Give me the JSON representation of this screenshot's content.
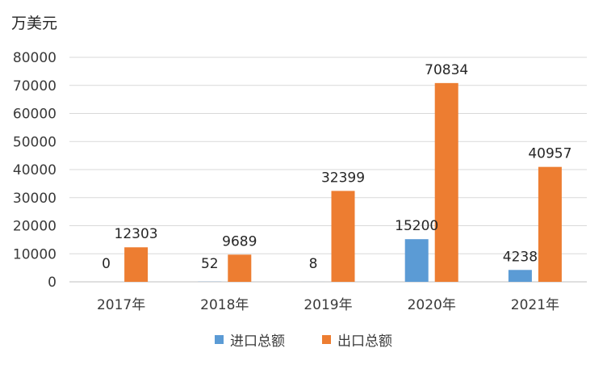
{
  "unit_label": "万美元",
  "chart_data": {
    "type": "bar",
    "categories": [
      "2017年",
      "2018年",
      "2019年",
      "2020年",
      "2021年"
    ],
    "series": [
      {
        "name": "进口总额",
        "values": [
          0,
          52,
          8,
          15200,
          4238
        ],
        "color": "#5b9bd5"
      },
      {
        "name": "出口总额",
        "values": [
          12303,
          9689,
          32399,
          70834,
          40957
        ],
        "color": "#ed7d31"
      }
    ],
    "ylabel": "万美元",
    "ylim": [
      0,
      80000
    ],
    "yticks": [
      0,
      10000,
      20000,
      30000,
      40000,
      50000,
      60000,
      70000,
      80000
    ],
    "grid": true,
    "legend_position": "bottom"
  }
}
